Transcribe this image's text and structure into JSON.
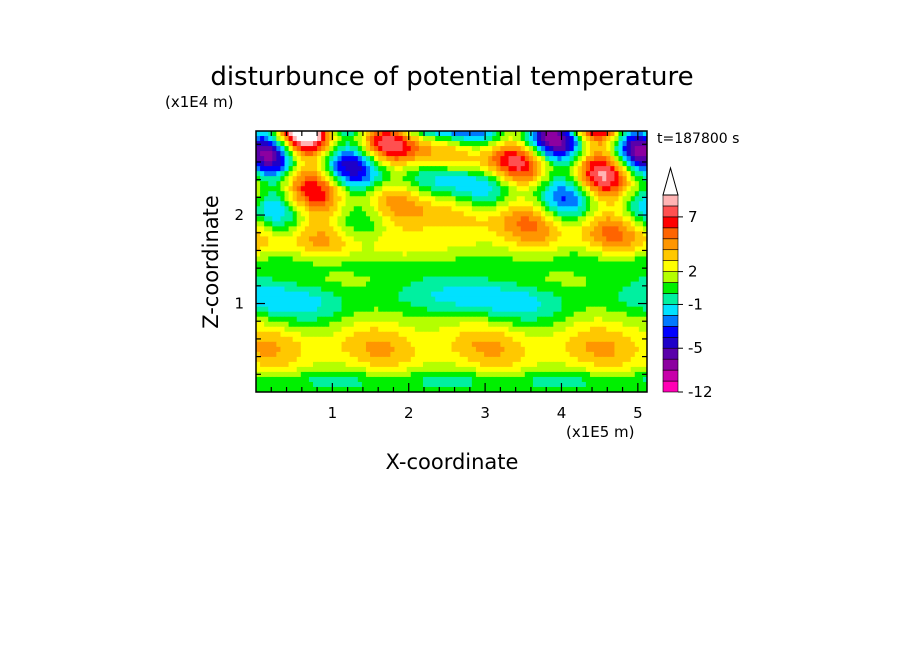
{
  "chart_data": {
    "type": "heatmap",
    "title": "disturbunce of potential temperature",
    "xlabel": "X-coordinate",
    "ylabel": "Z-coordinate",
    "x_unit": "(x1E5 m)",
    "y_unit": "(x1E4 m)",
    "time_label": "t=187800 s",
    "xlim": [
      0,
      5.12
    ],
    "ylim": [
      0,
      2.95
    ],
    "x_ticks": [
      1,
      2,
      3,
      4,
      5
    ],
    "x_tick_labels": [
      "1",
      "2",
      "3",
      "4",
      "5"
    ],
    "y_ticks": [
      1,
      2
    ],
    "y_tick_labels": [
      "1",
      "2"
    ],
    "colorbar": {
      "levels": [
        -12,
        -10,
        -8,
        -6,
        -5,
        -4,
        -3,
        -2,
        -1,
        0,
        1,
        2,
        3,
        4,
        5,
        6,
        7,
        8,
        9,
        10
      ],
      "colors": [
        "#ff00b4",
        "#c800aa",
        "#8c00a0",
        "#5a00aa",
        "#1e00c8",
        "#0000ff",
        "#0078ff",
        "#00e1ff",
        "#00f0a0",
        "#00f000",
        "#b4ff00",
        "#ffff00",
        "#ffc800",
        "#ff9600",
        "#ff6400",
        "#ff0000",
        "#ff5050",
        "#ffb4b4",
        "#ffffff"
      ],
      "labels": [
        "-12",
        "-5",
        "-1",
        "2",
        "7"
      ],
      "label_values": [
        -12,
        -5,
        -1,
        2,
        7
      ],
      "extend_max": true
    }
  }
}
